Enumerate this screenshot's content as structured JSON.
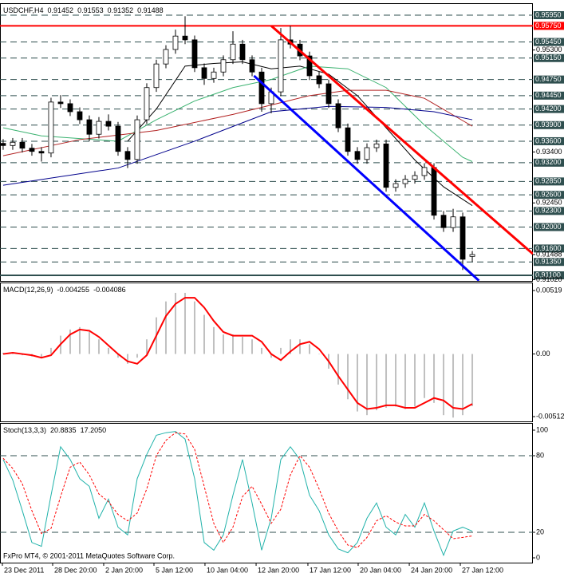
{
  "chart_data": [
    {
      "type": "candlestick",
      "title": "USDCHF,H4",
      "open": [
        0.9356,
        0.9352,
        0.9358,
        0.9347,
        0.9341,
        0.9338,
        0.9433,
        0.943,
        0.9415,
        0.94,
        0.9373,
        0.9397,
        0.9388,
        0.9341,
        0.9326,
        0.94,
        0.946,
        0.9504,
        0.9531,
        0.9556,
        0.9549,
        0.9497,
        0.9477,
        0.9489,
        0.9512,
        0.9541,
        0.9512,
        0.9489,
        0.943,
        0.9452,
        0.9549,
        0.9541,
        0.9519,
        0.9482,
        0.9467,
        0.943,
        0.9385,
        0.9341,
        0.9326,
        0.9348,
        0.9355,
        0.9274,
        0.9281,
        0.9289,
        0.9296,
        0.9311,
        0.9222,
        0.9199,
        0.9219,
        0.91452
      ],
      "high": [
        0.9364,
        0.9366,
        0.9366,
        0.9355,
        0.9349,
        0.9441,
        0.9446,
        0.9438,
        0.9423,
        0.9408,
        0.9405,
        0.941,
        0.9396,
        0.9349,
        0.9408,
        0.9468,
        0.9512,
        0.9539,
        0.9568,
        0.9593,
        0.9557,
        0.9505,
        0.9497,
        0.952,
        0.9565,
        0.9549,
        0.952,
        0.9497,
        0.946,
        0.9571,
        0.9575,
        0.9549,
        0.9527,
        0.949,
        0.9475,
        0.9438,
        0.9393,
        0.9349,
        0.9356,
        0.9363,
        0.9363,
        0.9289,
        0.9297,
        0.9304,
        0.9319,
        0.9319,
        0.923,
        0.9234,
        0.9227,
        0.91553
      ],
      "low": [
        0.9344,
        0.9344,
        0.9339,
        0.9333,
        0.9322,
        0.933,
        0.9422,
        0.9407,
        0.9392,
        0.936,
        0.9365,
        0.938,
        0.9333,
        0.931,
        0.9318,
        0.9392,
        0.9452,
        0.9496,
        0.9523,
        0.9541,
        0.9489,
        0.9465,
        0.9469,
        0.9481,
        0.9504,
        0.9504,
        0.9481,
        0.9415,
        0.9412,
        0.9444,
        0.9533,
        0.9511,
        0.9474,
        0.9459,
        0.9422,
        0.9377,
        0.9333,
        0.9318,
        0.9318,
        0.934,
        0.9266,
        0.9266,
        0.9273,
        0.9281,
        0.9288,
        0.9214,
        0.9191,
        0.9191,
        0.912,
        0.91352
      ],
      "close": [
        0.9352,
        0.9358,
        0.9347,
        0.9341,
        0.9338,
        0.9433,
        0.943,
        0.9415,
        0.94,
        0.9373,
        0.9397,
        0.9388,
        0.9341,
        0.9326,
        0.94,
        0.946,
        0.9504,
        0.9531,
        0.9556,
        0.9549,
        0.9497,
        0.9477,
        0.9489,
        0.9512,
        0.9541,
        0.9512,
        0.9489,
        0.943,
        0.9452,
        0.9549,
        0.9541,
        0.9519,
        0.9482,
        0.9467,
        0.943,
        0.9385,
        0.9341,
        0.9326,
        0.9348,
        0.9355,
        0.9274,
        0.9281,
        0.9289,
        0.9296,
        0.9311,
        0.9222,
        0.9199,
        0.9219,
        0.914,
        0.91488
      ],
      "up_color": "#ffffff",
      "down_color": "#000000",
      "xlim": [
        -0.33,
        55.33
      ],
      "xticks": [
        {
          "value": -0.08,
          "label": "23 Dec 2011"
        },
        {
          "value": 5.17,
          "label": "28 Dec 20:00"
        },
        {
          "value": 10.5,
          "label": "2 Jan 20:00"
        },
        {
          "value": 15.75,
          "label": "5 Jan 12:00"
        },
        {
          "value": 21.08,
          "label": "10 Jan 04:00"
        },
        {
          "value": 26.42,
          "label": "12 Jan 20:00"
        },
        {
          "value": 31.83,
          "label": "17 Jan 12:00"
        },
        {
          "value": 37.08,
          "label": "20 Jan 04:00"
        },
        {
          "value": 42.42,
          "label": "24 Jan 20:00"
        },
        {
          "value": 47.75,
          "label": "27 Jan 12:00"
        }
      ],
      "ylim": [
        0.90996,
        0.96158
      ],
      "yticks": [
        {
          "value": 0.953,
          "label": "0.95300"
        },
        {
          "value": 0.934,
          "label": "0.93400"
        },
        {
          "value": 0.9245,
          "label": "0.92450"
        },
        0.91488,
        {
          "value": 0.9102,
          "label": "0.91020"
        }
      ],
      "levels": [
        {
          "value": 0.9595,
          "label": "0.95950",
          "color": "#2f4f4f",
          "style": "dashed"
        },
        {
          "value": 0.9575,
          "label": "0.95750",
          "color": "#ff0000",
          "style": "solid"
        },
        {
          "value": 0.9545,
          "label": "0.95450",
          "color": "#2f4f4f",
          "style": "dashed"
        },
        {
          "value": 0.9515,
          "label": "0.95150",
          "color": "#2f4f4f",
          "style": "dashed"
        },
        {
          "value": 0.9475,
          "label": "0.94750",
          "color": "#2f4f4f",
          "style": "dashed"
        },
        {
          "value": 0.9445,
          "label": "0.94450",
          "color": "#2f4f4f",
          "style": "dashed"
        },
        {
          "value": 0.942,
          "label": "0.94200",
          "color": "#2f4f4f",
          "style": "dashed"
        },
        {
          "value": 0.939,
          "label": "0.93900",
          "color": "#2f4f4f",
          "style": "dashed"
        },
        {
          "value": 0.936,
          "label": "0.93600",
          "color": "#2f4f4f",
          "style": "dashed"
        },
        {
          "value": 0.932,
          "label": "0.93200",
          "color": "#2f4f4f",
          "style": "dashed"
        },
        {
          "value": 0.9285,
          "label": "0.92850",
          "color": "#2f4f4f",
          "style": "dashed"
        },
        {
          "value": 0.926,
          "label": "0.92600",
          "color": "#2f4f4f",
          "style": "dashed"
        },
        {
          "value": 0.923,
          "label": "0.92300",
          "color": "#2f4f4f",
          "style": "dashed"
        },
        {
          "value": 0.92,
          "label": "0.92000",
          "color": "#2f4f4f",
          "style": "dashed"
        },
        {
          "value": 0.916,
          "label": "0.91600",
          "color": "#2f4f4f",
          "style": "dashed"
        },
        {
          "value": 0.9135,
          "label": "0.91350",
          "color": "#2f4f4f",
          "style": "dashed"
        },
        {
          "value": 0.911,
          "label": "0.91100",
          "color": "#2f4f4f",
          "style": "solid"
        }
      ],
      "moving_averages": [
        {
          "color": "#000000",
          "x": [
            13,
            16,
            19,
            22,
            25,
            28,
            31,
            34,
            37,
            40,
            43,
            46,
            49
          ],
          "values": [
            0.936,
            0.942,
            0.95,
            0.9505,
            0.9508,
            0.9495,
            0.95,
            0.9485,
            0.9445,
            0.9385,
            0.9325,
            0.9275,
            0.924
          ]
        },
        {
          "color": "#3cb371",
          "x": [
            0,
            4,
            8,
            12,
            16,
            20,
            24,
            28,
            32,
            36,
            40,
            44,
            48,
            49
          ],
          "values": [
            0.9385,
            0.937,
            0.9365,
            0.936,
            0.94,
            0.9435,
            0.946,
            0.9475,
            0.95,
            0.9495,
            0.946,
            0.939,
            0.933,
            0.9322
          ]
        },
        {
          "color": "#b22222",
          "x": [
            0,
            8,
            16,
            24,
            32,
            36,
            40,
            44,
            49
          ],
          "values": [
            0.9333,
            0.9363,
            0.938,
            0.941,
            0.9445,
            0.9455,
            0.9455,
            0.944,
            0.9388
          ]
        },
        {
          "color": "#00008b",
          "x": [
            0,
            12,
            20,
            28,
            34,
            40,
            45,
            49
          ],
          "values": [
            0.9278,
            0.931,
            0.936,
            0.9415,
            0.9425,
            0.9423,
            0.9415,
            0.94
          ]
        }
      ],
      "trendlines": [
        {
          "color": "#ff0000",
          "x": [
            28,
            55.33
          ],
          "values": [
            0.9575,
            0.915
          ]
        },
        {
          "color": "#0000ff",
          "x": [
            26.2,
            49.7
          ],
          "values": [
            0.9482,
            0.91
          ]
        }
      ]
    },
    {
      "type": "macd",
      "title": "MACD(12,26,9)",
      "series": [
        {
          "color": "#c0c0c0",
          "style": "histogram",
          "values": [
            0.0001,
            0,
            -0.0001,
            -0.0002,
            -0.0003,
            0.0005,
            0.0015,
            0.002,
            0.0022,
            0.0018,
            0.0012,
            0.0005,
            -0.0003,
            -0.0008,
            -0.0003,
            0.0012,
            0.003,
            0.0043,
            0.005,
            0.005,
            0.0043,
            0.0032,
            0.0022,
            0.0016,
            0.0016,
            0.0014,
            0.0012,
            0.0005,
            -0.0003,
            0.0005,
            0.0012,
            0.0012,
            0.0008,
            0,
            -0.0012,
            -0.0025,
            -0.0037,
            -0.0047,
            -0.005,
            -0.0046,
            -0.0044,
            -0.0043,
            -0.0045,
            -0.0043,
            -0.0036,
            -0.004,
            -0.005,
            -0.0052,
            -0.005,
            -0.004255
          ]
        },
        {
          "color": "#ff0000",
          "style": "line",
          "values": [
            0,
            0.0001,
            0,
            -0.0001,
            -0.0003,
            -0.0001,
            0.0008,
            0.0016,
            0.002,
            0.0019,
            0.0014,
            0.0007,
            0,
            -0.0006,
            -0.0008,
            -0.0001,
            0.0015,
            0.0031,
            0.0041,
            0.0046,
            0.0046,
            0.0038,
            0.0027,
            0.0018,
            0.0015,
            0.0015,
            0.0015,
            0.001,
            0,
            -0.0005,
            0.0002,
            0.0008,
            0.001,
            0.0004,
            -0.0006,
            -0.0018,
            -0.0029,
            -0.004,
            -0.0045,
            -0.0044,
            -0.0042,
            -0.0042,
            -0.0044,
            -0.0044,
            -0.004,
            -0.0036,
            -0.0038,
            -0.0044,
            -0.0045,
            -0.004086
          ]
        }
      ],
      "ylim": [
        -0.00551,
        0.00578
      ],
      "yticks": [
        0.00519,
        {
          "value": 0,
          "label": "0.00"
        },
        -0.00512
      ]
    },
    {
      "type": "stochastic",
      "title": "Stoch(13,3,3)",
      "series": [
        {
          "color": "#20b2aa",
          "style": "solid",
          "values": [
            77,
            61,
            37,
            12,
            9,
            49,
            87,
            77,
            62,
            56,
            31,
            46,
            24,
            18,
            62,
            81,
            96,
            98,
            99,
            93,
            62,
            12,
            6,
            18,
            49,
            77,
            43,
            6,
            31,
            77,
            87,
            77,
            49,
            37,
            18,
            7,
            4,
            12,
            31,
            43,
            24,
            18,
            34,
            24,
            43,
            21,
            2,
            21,
            24,
            20.8835
          ]
        },
        {
          "color": "#ff0000",
          "style": "dashed",
          "values": [
            78,
            70,
            58,
            37,
            19,
            23,
            48,
            71,
            75,
            65,
            50,
            44,
            34,
            29,
            35,
            54,
            80,
            92,
            98,
            97,
            85,
            56,
            27,
            12,
            24,
            48,
            56,
            42,
            27,
            38,
            65,
            80,
            71,
            54,
            35,
            21,
            10,
            8,
            16,
            29,
            33,
            28,
            25,
            25,
            34,
            29,
            22,
            15,
            16,
            17.205
          ],
          "value_labels": [
            null,
            null,
            null,
            null,
            null,
            null,
            null,
            null,
            null,
            null,
            null,
            null,
            null,
            null,
            null,
            null,
            null,
            null,
            null,
            null,
            null,
            null,
            null,
            null,
            null,
            null,
            null,
            null,
            null,
            null,
            null,
            null,
            null,
            null,
            null,
            null,
            null,
            null,
            null,
            null,
            null,
            null,
            null,
            null,
            null,
            null,
            null,
            null,
            null,
            "17.2050"
          ]
        }
      ],
      "ylim": [
        -3.75,
        105
      ],
      "yticks": [
        100,
        80,
        20,
        0
      ],
      "levels": [
        80,
        20
      ],
      "footer": "FxPro MT4, © 2001-2011 MetaQuotes Software Corp."
    }
  ]
}
